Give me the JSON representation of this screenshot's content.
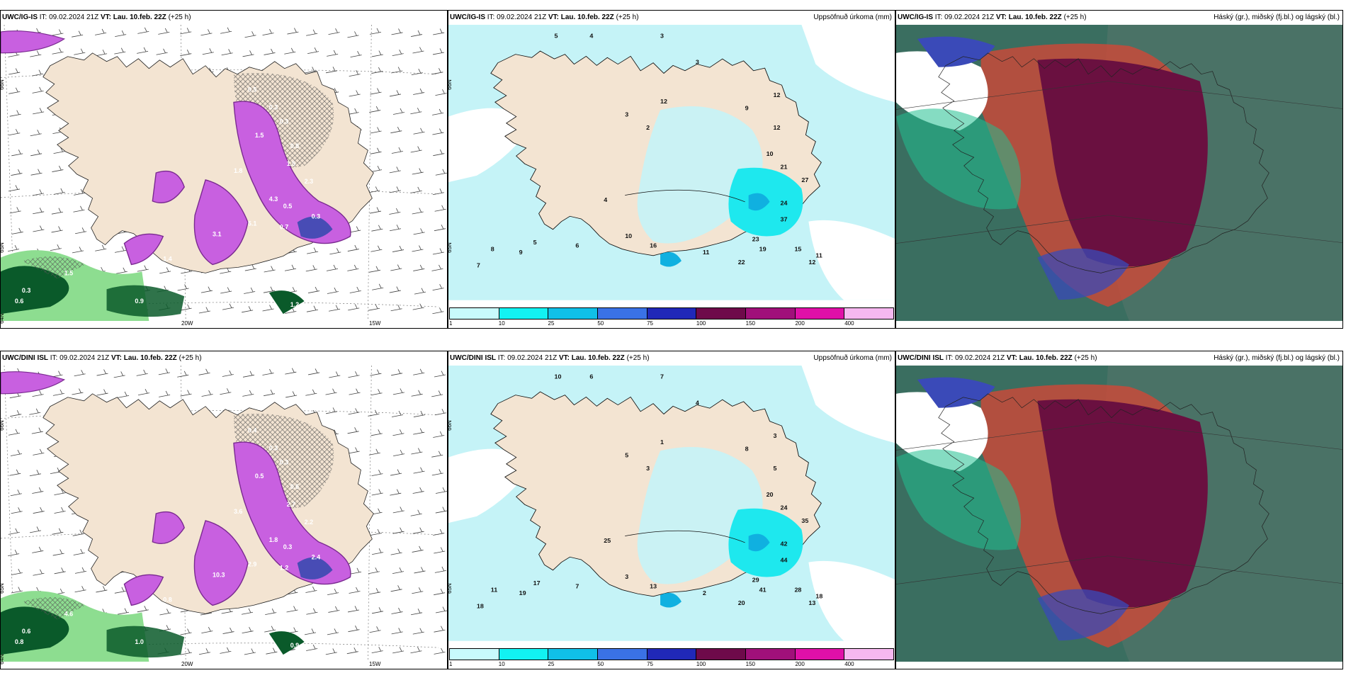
{
  "panels": [
    {
      "id": "p1",
      "model": "UWC/IG-IS",
      "it_label": "IT:",
      "it_value": "09.02.2024 21Z",
      "vt_label": "VT:",
      "vt_value": "Lau. 10.feb. 22Z",
      "lead": "(+25 h)",
      "right_title": "",
      "lat_labels": [
        "66N",
        "65N",
        "64N"
      ],
      "lon_labels": [
        "20W",
        "15W"
      ],
      "values": [
        "0.5",
        "0.3",
        "0.3",
        "1.5",
        "0.8",
        "1.8",
        "1.5",
        "2.3",
        "4.3",
        "5.1",
        "3.1",
        "0.7",
        "0.5",
        "0.3",
        "0.6",
        "1.5",
        "0.9",
        "0.3",
        "1.4",
        "1.2"
      ]
    },
    {
      "id": "p2",
      "model": "UWC/IG-IS",
      "it_label": "IT:",
      "it_value": "09.02.2024 21Z",
      "vt_label": "VT:",
      "vt_value": "Lau. 10.feb. 22Z",
      "lead": "(+25 h)",
      "right_title": "Uppsöfnuð úrkoma (mm)",
      "lat_labels": [
        "66N",
        "65N"
      ],
      "values": [
        "5",
        "4",
        "3",
        "3",
        "12",
        "9",
        "12",
        "10",
        "21",
        "27",
        "24",
        "37",
        "23",
        "19",
        "15",
        "11",
        "12",
        "22",
        "8",
        "9",
        "7",
        "5",
        "6",
        "10",
        "11",
        "12",
        "3",
        "2",
        "4",
        "16"
      ]
    },
    {
      "id": "p3",
      "model": "UWC/IG-IS",
      "it_label": "IT:",
      "it_value": "09.02.2024 21Z",
      "vt_label": "VT:",
      "vt_value": "Lau. 10.feb. 22Z",
      "lead": "(+25 h)",
      "right_title": "Háský (gr.), miðský (fj.bl.) og lágský (bl.)"
    },
    {
      "id": "p4",
      "model": "UWC/DINI ISL",
      "it_label": "IT:",
      "it_value": "09.02.2024 21Z",
      "vt_label": "VT:",
      "vt_value": "Lau. 10.feb. 22Z",
      "lead": "(+25 h)",
      "right_title": "",
      "lat_labels": [
        "66N",
        "65N",
        "64N"
      ],
      "lon_labels": [
        "20W",
        "15W"
      ],
      "values": [
        "0.4",
        "0.3",
        "0.3",
        "0.5",
        "0.6",
        "3.6",
        "2.7",
        "2.2",
        "1.8",
        "2.9",
        "10.3",
        "1.2",
        "0.3",
        "2.4",
        "0.8",
        "4.6",
        "1.0",
        "0.6",
        "0.8",
        "0.9"
      ]
    },
    {
      "id": "p5",
      "model": "UWC/DINI ISL",
      "it_label": "IT:",
      "it_value": "09.02.2024 21Z",
      "vt_label": "VT:",
      "vt_value": "Lau. 10.feb. 22Z",
      "lead": "(+25 h)",
      "right_title": "Uppsöfnuð úrkoma (mm)",
      "lat_labels": [
        "66N",
        "65N"
      ],
      "values": [
        "10",
        "6",
        "7",
        "4",
        "3",
        "8",
        "5",
        "20",
        "24",
        "35",
        "42",
        "44",
        "29",
        "41",
        "28",
        "18",
        "13",
        "20",
        "11",
        "19",
        "18",
        "17",
        "7",
        "3",
        "2",
        "1",
        "5",
        "3",
        "25",
        "13"
      ]
    },
    {
      "id": "p6",
      "model": "UWC/DINI ISL",
      "it_label": "IT:",
      "it_value": "09.02.2024 21Z",
      "vt_label": "VT:",
      "vt_value": "Lau. 10.feb. 22Z",
      "lead": "(+25 h)",
      "right_title": "Háský (gr.), miðský (fj.bl.) og lágský (bl.)"
    }
  ],
  "legend": {
    "ticks": [
      "1",
      "10",
      "25",
      "50",
      "75",
      "100",
      "150",
      "200",
      "400"
    ],
    "colors": [
      "#c8fafc",
      "#12f2f2",
      "#10c0e8",
      "#3a72e6",
      "#2028b8",
      "#6e0a4a",
      "#a0107a",
      "#e010a8",
      "#f6b8f0"
    ]
  },
  "palette": {
    "land": "#f3e4d2",
    "precip_light": "#c5f3f7",
    "precip_mid": "#1ee8ee",
    "purple": "#c860e0",
    "purple_dark": "#7a2a90",
    "green_dark": "#0a5a2a",
    "green_light": "#8ddd90",
    "cloud_high": "#6a1040",
    "cloud_mid": "#c84a3a",
    "cloud_low": "#3a6e60",
    "cloud_blue": "#3a4ab8",
    "cloud_teal": "#20c090"
  }
}
